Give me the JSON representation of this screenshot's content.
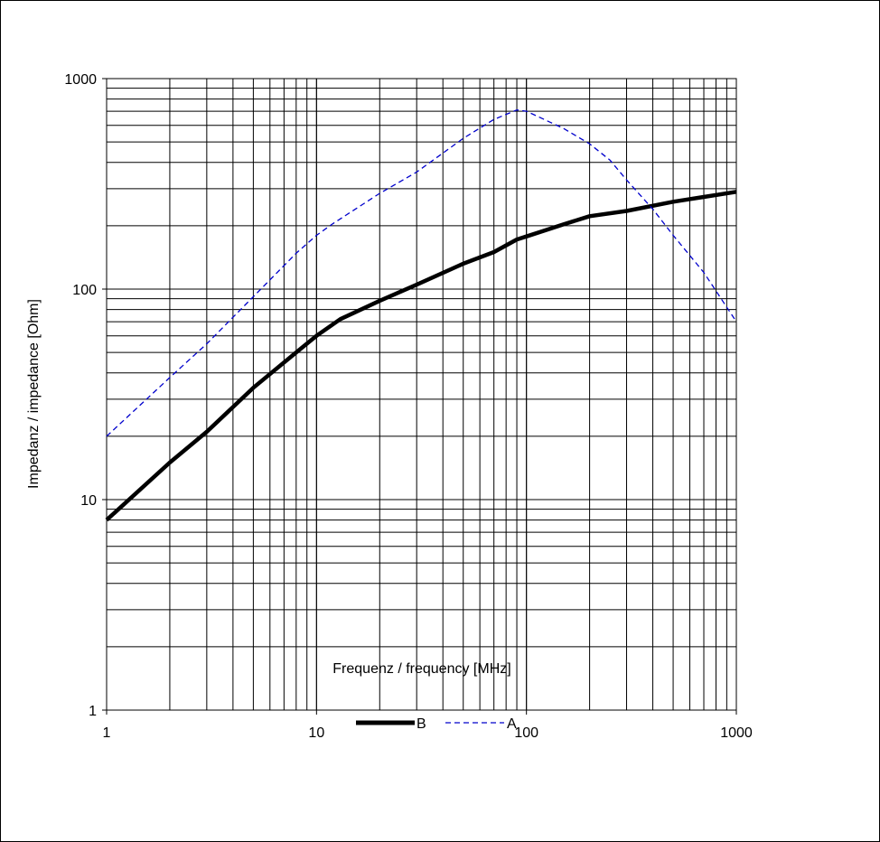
{
  "chart_data": {
    "type": "line",
    "xlabel": "Frequenz / frequency [MHz]",
    "ylabel": "Impedanz / impedance [Ohm]",
    "x_scale": "log",
    "y_scale": "log",
    "xlim": [
      1,
      1000
    ],
    "ylim": [
      1,
      1000
    ],
    "grid": true,
    "legend_position": "bottom",
    "x_ticks": [
      "1",
      "10",
      "100",
      "1000"
    ],
    "y_ticks": [
      "1",
      "10",
      "100",
      "1000"
    ],
    "series": [
      {
        "name": "B",
        "style": "solid-thick",
        "color": "#000000",
        "x": [
          1,
          2,
          3,
          5,
          8,
          10,
          13,
          20,
          30,
          50,
          70,
          90,
          100,
          150,
          200,
          300,
          500,
          700,
          1000
        ],
        "y": [
          8,
          15,
          21,
          34,
          50,
          60,
          72,
          88,
          105,
          132,
          150,
          172,
          178,
          203,
          222,
          235,
          260,
          274,
          290
        ]
      },
      {
        "name": "A",
        "style": "dashed",
        "color": "#0000cc",
        "x": [
          1,
          2,
          3,
          5,
          8,
          10,
          12,
          20,
          30,
          50,
          70,
          90,
          100,
          150,
          200,
          250,
          300,
          400,
          500,
          700,
          1000
        ],
        "y": [
          20,
          38,
          55,
          92,
          148,
          180,
          205,
          285,
          360,
          520,
          640,
          710,
          700,
          580,
          490,
          410,
          330,
          240,
          180,
          120,
          70
        ]
      }
    ]
  }
}
